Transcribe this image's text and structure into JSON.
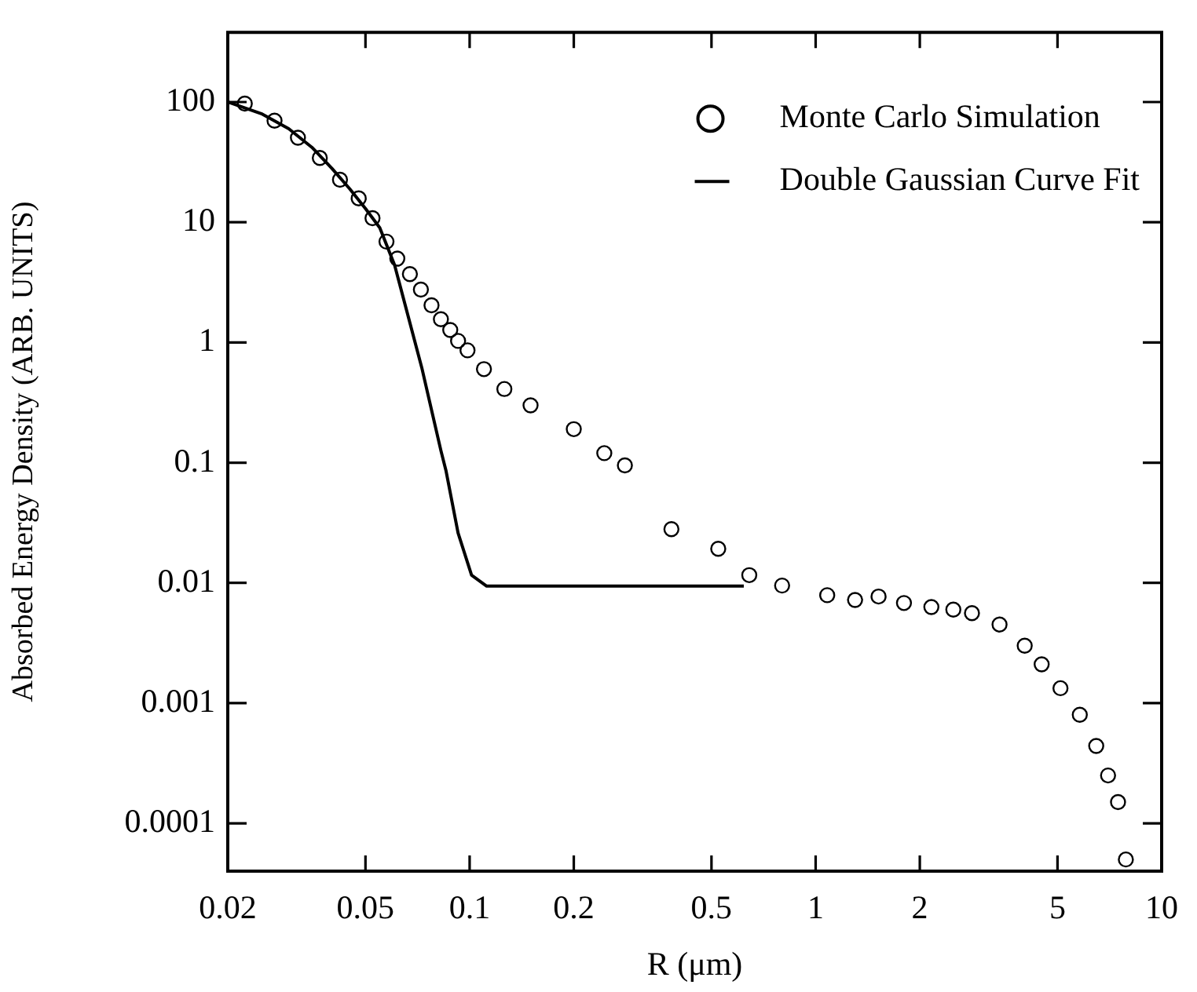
{
  "chart_data": {
    "type": "scatter",
    "xlabel": "R (μm)",
    "ylabel": "Absorbed Energy Density (ARB. UNITS)",
    "log": "xy",
    "xlim": [
      0.02,
      10
    ],
    "ylim": [
      4e-05,
      380
    ],
    "xticks": [
      0.02,
      0.05,
      0.1,
      0.2,
      0.5,
      1,
      2,
      5,
      10
    ],
    "yticks": [
      0.0001,
      0.001,
      0.01,
      0.1,
      1,
      10,
      100
    ],
    "grid": false,
    "legend": "top right",
    "marker": "circle",
    "series": [
      {
        "name": "Monte Carlo Simulation",
        "color": "#000000",
        "x": [
          0.0224,
          0.0273,
          0.0319,
          0.0369,
          0.0422,
          0.0478,
          0.0524,
          0.0575,
          0.0618,
          0.0672,
          0.0723,
          0.0776,
          0.0826,
          0.0879,
          0.0926,
          0.0986,
          0.11,
          0.126,
          0.15,
          0.2,
          0.245,
          0.281,
          0.383,
          0.523,
          0.643,
          0.8,
          1.08,
          1.3,
          1.52,
          1.8,
          2.16,
          2.5,
          2.83,
          3.4,
          4.02,
          4.5,
          5.1,
          5.8,
          6.47,
          7.0,
          7.48,
          7.88
        ],
        "values": [
          97,
          70,
          50.5,
          34.3,
          22.6,
          15.8,
          10.8,
          6.9,
          4.98,
          3.7,
          2.75,
          2.04,
          1.56,
          1.27,
          1.03,
          0.86,
          0.6,
          0.41,
          0.3,
          0.19,
          0.12,
          0.095,
          0.028,
          0.0192,
          0.0116,
          0.0095,
          0.0079,
          0.0072,
          0.0077,
          0.0068,
          0.0063,
          0.006,
          0.0056,
          0.0045,
          0.003,
          0.0021,
          0.00133,
          0.0008,
          0.00044,
          0.00025,
          0.00015,
          5e-05
        ]
      },
      {
        "name": "Double Gaussian Curve Fit",
        "type": "line",
        "color": "#000000",
        "marker": "none",
        "line_style": "solid",
        "x": [
          0.02,
          0.025,
          0.03,
          0.035,
          0.04,
          0.045,
          0.05,
          0.055,
          0.0607,
          0.0727,
          0.0826,
          0.0855,
          0.0926,
          0.1013,
          0.112,
          0.2,
          0.4,
          0.62
        ],
        "values": [
          100,
          80,
          60,
          42,
          28,
          19,
          13,
          9,
          4.4,
          0.62,
          0.126,
          0.085,
          0.026,
          0.0116,
          0.0094,
          0.0094,
          0.0094,
          0.0094
        ]
      }
    ]
  }
}
